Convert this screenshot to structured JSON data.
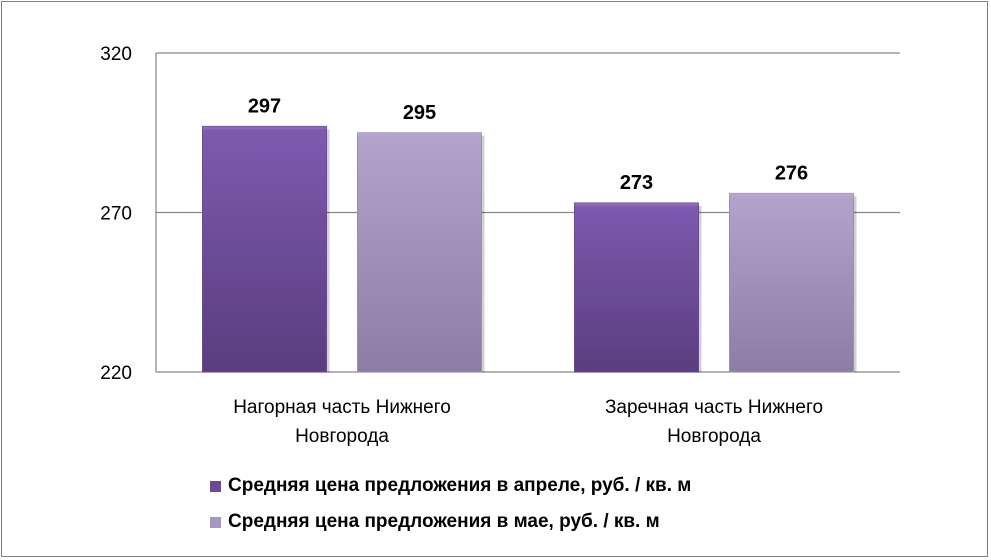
{
  "chart_data": {
    "type": "bar",
    "title": "",
    "xlabel": "",
    "ylabel": "",
    "ylim": [
      220,
      320
    ],
    "yticks": [
      220,
      270,
      320
    ],
    "grid": true,
    "legend_position": "bottom",
    "categories": [
      [
        "Нагорная часть Нижнего",
        "Новгорода"
      ],
      [
        "Заречная часть Нижнего",
        "Новгорода"
      ]
    ],
    "series": [
      {
        "name": "Средняя цена предложения в апреле, руб. / кв. м",
        "values": [
          297,
          273
        ],
        "color": "#6b4a94",
        "color_light": "#8a6bb3"
      },
      {
        "name": "Средняя цена предложения в мае, руб. / кв. м",
        "values": [
          295,
          276
        ],
        "color": "#9f8bb9",
        "color_light": "#b7a6cf"
      }
    ]
  }
}
